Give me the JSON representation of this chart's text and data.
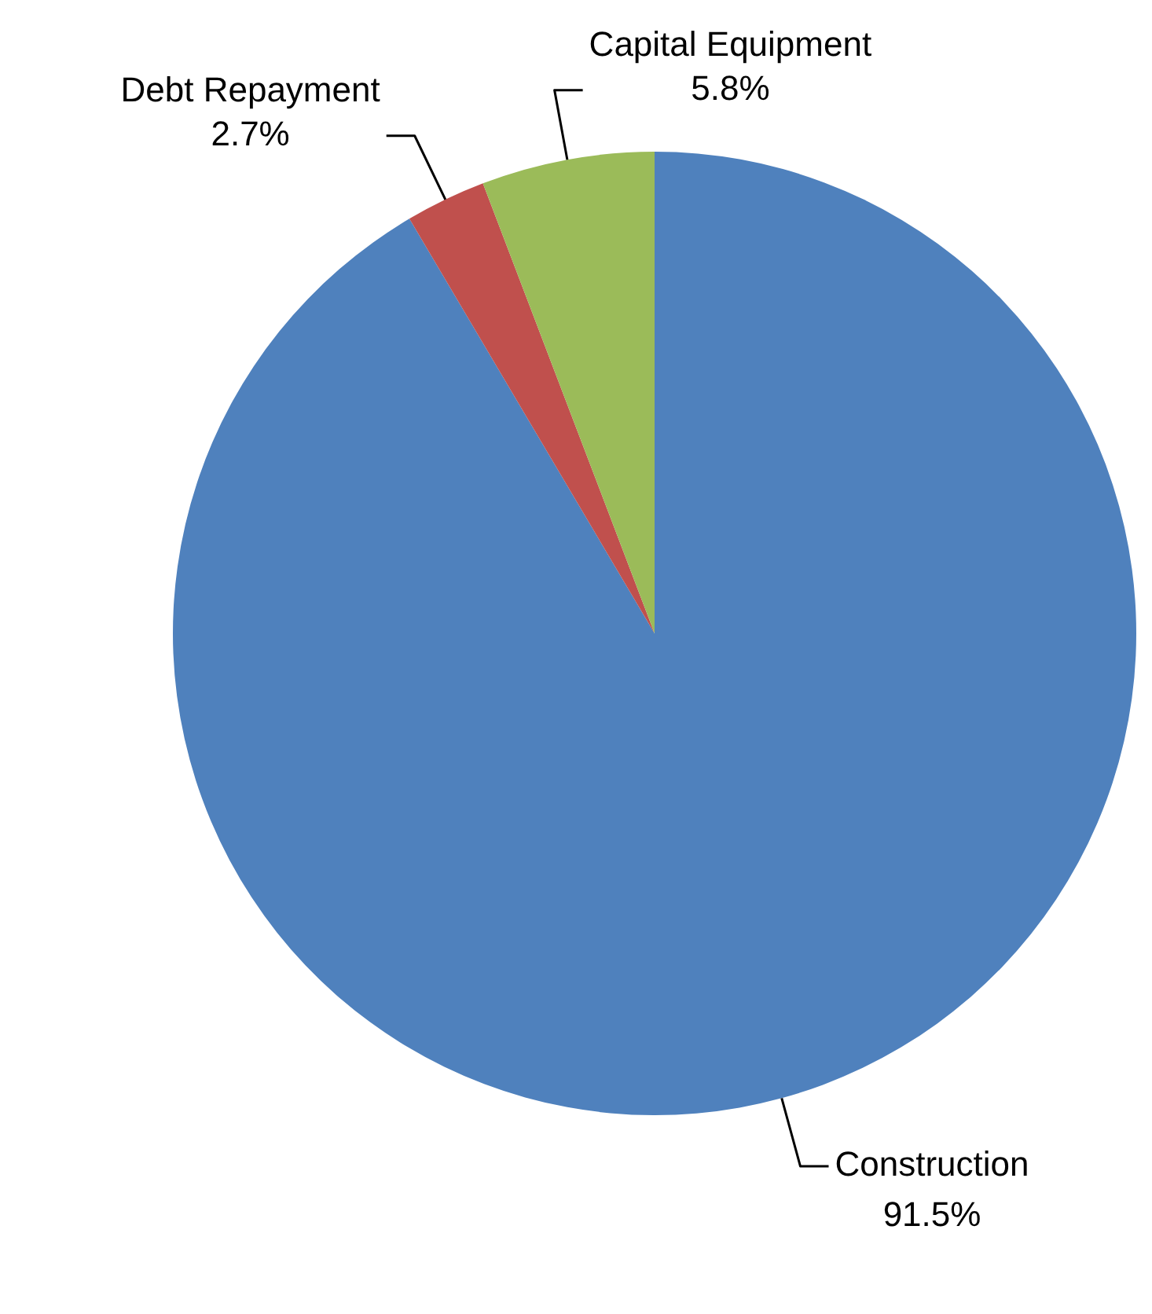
{
  "chart_data": {
    "type": "pie",
    "categories": [
      "Construction",
      "Debt Repayment",
      "Capital Equipment"
    ],
    "values": [
      91.5,
      2.7,
      5.8
    ],
    "colors": [
      "#4f81bd",
      "#c0504d",
      "#9bbb59"
    ],
    "value_labels": [
      "91.5%",
      "2.7%",
      "5.8%"
    ],
    "legend": false
  }
}
